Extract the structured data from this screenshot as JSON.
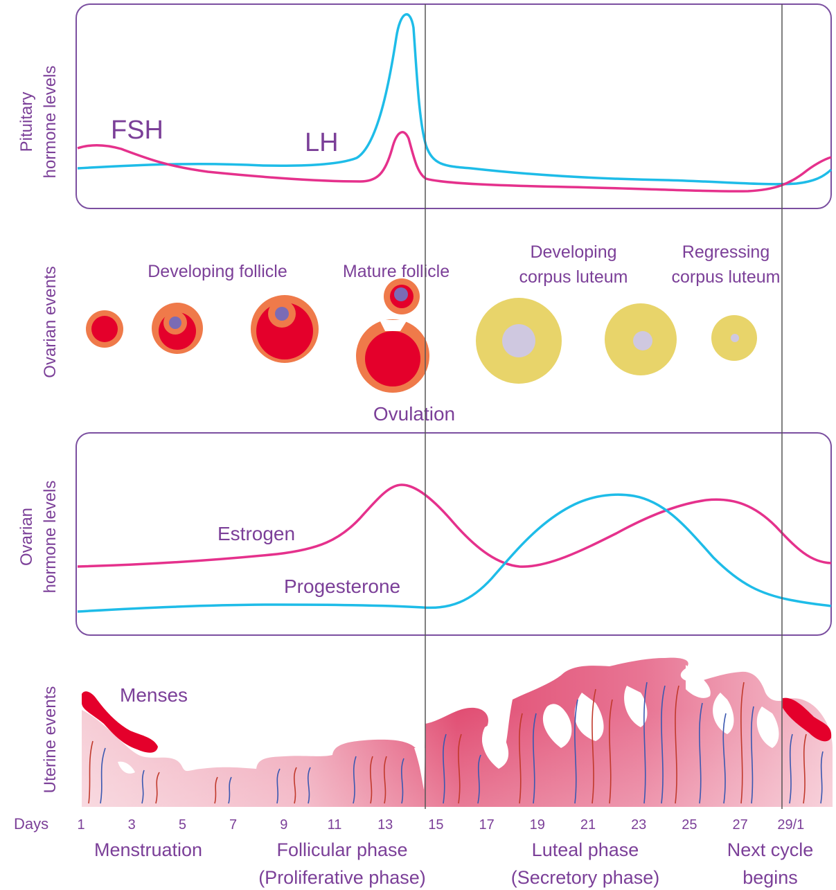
{
  "panels": {
    "pituitary": {
      "label_line1": "Pituitary",
      "label_line2": "hormone levels"
    },
    "ovarian_events": {
      "label": "Ovarian events"
    },
    "ovarian_hormones": {
      "label_line1": "Ovarian",
      "label_line2": "hormone levels"
    },
    "uterine": {
      "label": "Uterine events"
    }
  },
  "hormones": {
    "fsh": {
      "label": "FSH",
      "color": "#e5318c"
    },
    "lh": {
      "label": "LH",
      "color": "#1ebce8"
    },
    "estrogen": {
      "label": "Estrogen",
      "color": "#e5318c"
    },
    "progesterone": {
      "label": "Progesterone",
      "color": "#1ebce8"
    }
  },
  "ovarian_labels": {
    "developing_follicle": "Developing follicle",
    "mature_follicle": "Mature follicle",
    "ovulation": "Ovulation",
    "developing_cl_1": "Developing",
    "developing_cl_2": "corpus luteum",
    "regressing_cl_1": "Regressing",
    "regressing_cl_2": "corpus luteum"
  },
  "uterine_labels": {
    "menses": "Menses"
  },
  "days": {
    "label": "Days",
    "ticks": [
      "1",
      "3",
      "5",
      "7",
      "9",
      "11",
      "13",
      "15",
      "17",
      "19",
      "21",
      "23",
      "25",
      "27",
      "29/1"
    ]
  },
  "phases": {
    "menstruation": "Menstruation",
    "follicular_1": "Follicular phase",
    "follicular_2": "(Proliferative phase)",
    "luteal_1": "Luteal phase",
    "luteal_2": "(Secretory phase)",
    "next_1": "Next cycle",
    "next_2": "begins"
  },
  "colors": {
    "frame": "#7b4fa0",
    "text": "#7b3f98",
    "follicle_red": "#e4002b",
    "follicle_orange": "#ef7a4a",
    "oocyte": "#7b6bb5",
    "corpus_luteum": "#e8d46a",
    "cl_center": "#cfc8e0",
    "endometrium": "#e8587c",
    "vessel_red": "#c0392b",
    "vessel_blue": "#3a57b0"
  }
}
